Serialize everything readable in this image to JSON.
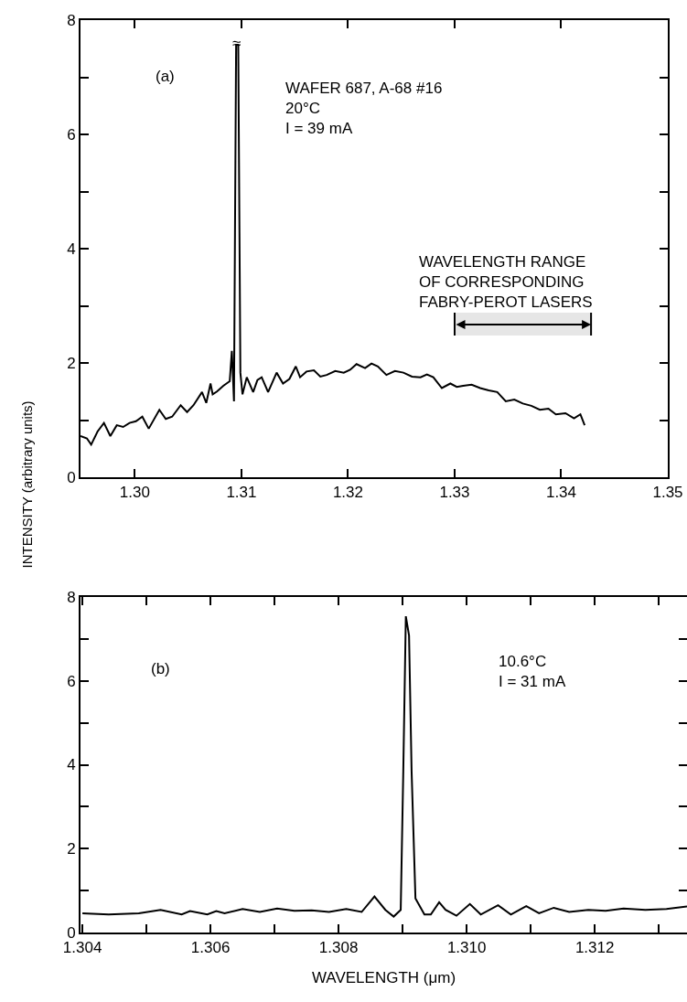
{
  "chart_data": [
    {
      "type": "line",
      "ylabel": "INTENSITY (arbitrary units)",
      "xlim": [
        1.2949,
        1.35
      ],
      "ylim": [
        0,
        8
      ],
      "xticks": [
        {
          "value": 1.3,
          "label": "1.30"
        },
        1.31,
        1.32,
        1.33,
        1.34,
        1.35
      ],
      "yticks": [
        {
          "value": 0,
          "label": "0"
        },
        {
          "value": 1,
          "label": null
        },
        2,
        {
          "value": 3,
          "label": null
        },
        4,
        {
          "value": 5,
          "label": null
        },
        6,
        {
          "value": 7,
          "label": null
        },
        8
      ],
      "grid": false,
      "marker": "none",
      "line_style": "solid",
      "annotations": [
        "(a)",
        "WAFER 687, A-68 #16\n20°C\nI = 39 mA",
        "≈"
      ],
      "bands": [
        {
          "axis": "x",
          "from": 1.33,
          "to": 1.3428,
          "label": "WAVELENGTH RANGE\nOF CORRESPONDING\nFABRY-PEROT LASERS"
        }
      ],
      "series": [
        {
          "color": "#000000",
          "x": [
            1.2949,
            1.2955,
            1.2959,
            1.2965,
            1.2971,
            1.2977,
            1.2983,
            1.2989,
            1.2995,
            1.3001,
            1.3007,
            1.3013,
            1.3023,
            1.3029,
            1.3035,
            1.3043,
            1.3049,
            1.3055,
            1.3063,
            1.3067,
            1.3071,
            1.3073,
            1.3077,
            1.3083,
            1.3089,
            1.3091,
            1.3093,
            1.3095,
            1.3097,
            1.3099,
            1.3101,
            1.3105,
            1.3111,
            1.3115,
            1.3119,
            1.3125,
            1.3133,
            1.3139,
            1.3145,
            1.3151,
            1.3155,
            1.3161,
            1.3168,
            1.3174,
            1.318,
            1.3188,
            1.3196,
            1.3202,
            1.3208,
            1.3216,
            1.3222,
            1.3228,
            1.3236,
            1.3244,
            1.3252,
            1.326,
            1.3268,
            1.3274,
            1.328,
            1.3288,
            1.3296,
            1.3302,
            1.3308,
            1.3316,
            1.3324,
            1.3332,
            1.334,
            1.3348,
            1.3356,
            1.3364,
            1.3372,
            1.338,
            1.3388,
            1.3395,
            1.3404,
            1.3412,
            1.3418,
            1.3422
          ],
          "values": [
            0.72,
            0.68,
            0.57,
            0.8,
            0.95,
            0.72,
            0.91,
            0.88,
            0.95,
            0.98,
            1.06,
            0.85,
            1.18,
            1.02,
            1.06,
            1.26,
            1.14,
            1.26,
            1.49,
            1.3,
            1.64,
            1.45,
            1.5,
            1.6,
            1.68,
            2.21,
            1.33,
            7.57,
            7.57,
            1.83,
            1.45,
            1.75,
            1.49,
            1.7,
            1.75,
            1.49,
            1.83,
            1.64,
            1.72,
            1.94,
            1.75,
            1.85,
            1.87,
            1.76,
            1.79,
            1.86,
            1.83,
            1.88,
            1.98,
            1.91,
            1.99,
            1.94,
            1.79,
            1.86,
            1.83,
            1.76,
            1.75,
            1.8,
            1.75,
            1.56,
            1.64,
            1.58,
            1.6,
            1.62,
            1.56,
            1.52,
            1.49,
            1.33,
            1.36,
            1.29,
            1.25,
            1.18,
            1.2,
            1.1,
            1.12,
            1.03,
            1.1,
            0.91
          ]
        }
      ]
    },
    {
      "type": "line",
      "xlabel": "WAVELENGTH (μm)",
      "xlim": [
        1.30397,
        1.31344
      ],
      "ylim": [
        0,
        8
      ],
      "xticks": [
        1.304,
        {
          "value": 1.305,
          "label": null
        },
        1.306,
        {
          "value": 1.307,
          "label": null
        },
        1.308,
        {
          "value": 1.309,
          "label": null
        },
        {
          "value": 1.31,
          "label": "1.310"
        },
        {
          "value": 1.311,
          "label": null
        },
        1.312,
        {
          "value": 1.313,
          "label": null
        }
      ],
      "yticks": [
        0,
        {
          "value": 1,
          "label": null
        },
        2,
        {
          "value": 3,
          "label": null
        },
        4,
        {
          "value": 5,
          "label": null
        },
        6,
        {
          "value": 7,
          "label": null
        },
        8
      ],
      "grid": false,
      "marker": "none",
      "line_style": "solid",
      "annotations": [
        "(b)",
        "10.6°C\nI = 31 mA"
      ],
      "series": [
        {
          "color": "#000000",
          "x": [
            1.304,
            1.30441,
            1.30488,
            1.30522,
            1.30555,
            1.30568,
            1.30595,
            1.30609,
            1.30622,
            1.3065,
            1.30677,
            1.30704,
            1.30731,
            1.30758,
            1.30785,
            1.30812,
            1.30836,
            1.30856,
            1.30873,
            1.30886,
            1.30897,
            1.30901,
            1.30905,
            1.3091,
            1.30914,
            1.3092,
            1.30934,
            1.30944,
            1.30957,
            1.30967,
            1.30984,
            1.31005,
            1.31022,
            1.31049,
            1.31069,
            1.31093,
            1.31113,
            1.31136,
            1.3116,
            1.3119,
            1.31217,
            1.31245,
            1.31279,
            1.31312,
            1.31344
          ],
          "values": [
            0.46,
            0.43,
            0.46,
            0.54,
            0.43,
            0.51,
            0.43,
            0.51,
            0.46,
            0.56,
            0.49,
            0.57,
            0.52,
            0.53,
            0.49,
            0.56,
            0.49,
            0.86,
            0.54,
            0.38,
            0.54,
            3.84,
            7.54,
            7.08,
            3.84,
            0.81,
            0.43,
            0.43,
            0.72,
            0.54,
            0.4,
            0.68,
            0.43,
            0.65,
            0.43,
            0.63,
            0.46,
            0.59,
            0.49,
            0.54,
            0.52,
            0.57,
            0.54,
            0.56,
            0.62
          ]
        }
      ]
    }
  ]
}
